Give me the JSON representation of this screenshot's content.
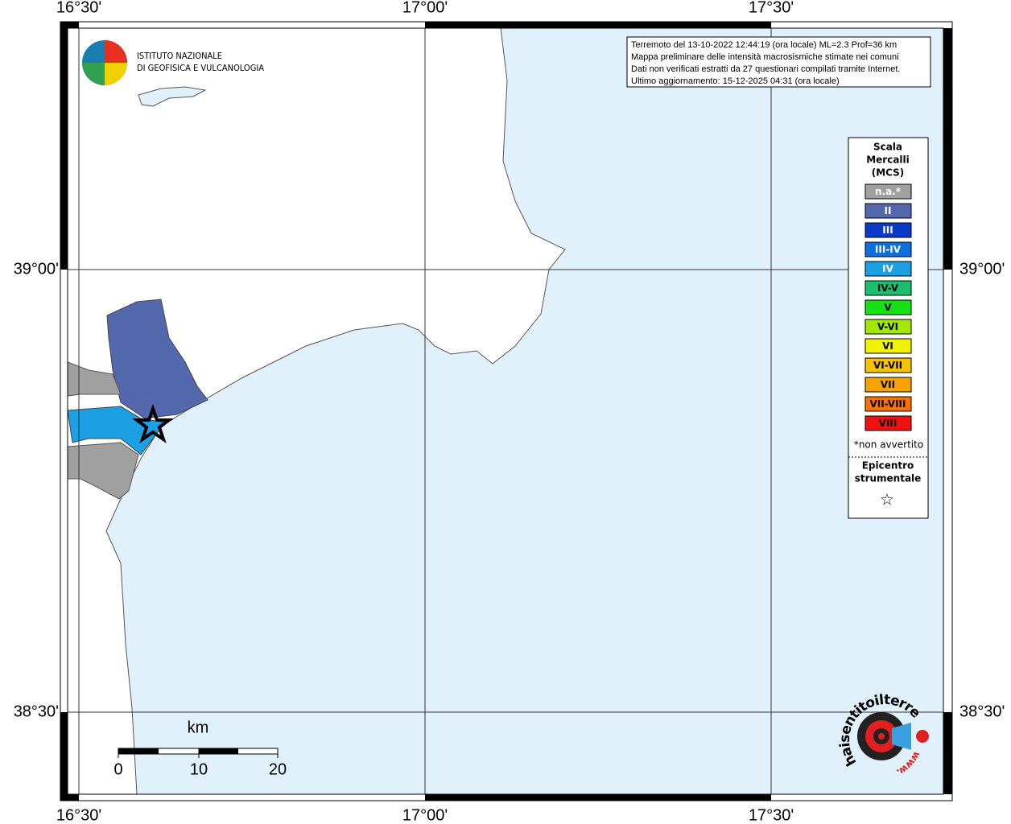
{
  "map": {
    "lon_labels": [
      "16°30'",
      "17°00'",
      "17°30'"
    ],
    "lat_labels": [
      "39°00'",
      "38°30'"
    ],
    "info": [
      "Terremoto del 13-10-2022 12:44:19 (ora locale) ML=2.3 Prof=36 km",
      "Mappa preliminare delle intensità macrosismiche stimate nei comuni",
      "Dati non verificati estratti da 27 questionari compilati tramite Internet.",
      "Ultimo aggiornamento: 15-12-2025 04:31 (ora locale)"
    ],
    "logo": [
      "ISTITUTO NAZIONALE",
      "DI GEOFISICA E VULCANOLOGIA"
    ],
    "scale": {
      "unit": "km",
      "labels": [
        "0",
        "10",
        "20"
      ]
    },
    "site_logo": "haisentitoilterremoto.it",
    "site_logo_www": "www.",
    "legend": {
      "title": [
        "Scala",
        "Mercalli",
        "(MCS)"
      ],
      "items": [
        {
          "label": "n.a.*",
          "color": "#a0a0a0",
          "text_color": "#ffffff"
        },
        {
          "label": "II",
          "color": "#5468ae",
          "text_color": "#ffffff"
        },
        {
          "label": "III",
          "color": "#0b3bc6",
          "text_color": "#ffffff"
        },
        {
          "label": "III-IV",
          "color": "#0b6fdf",
          "text_color": "#ffffff"
        },
        {
          "label": "IV",
          "color": "#1ba0e6",
          "text_color": "#ffffff"
        },
        {
          "label": "IV-V",
          "color": "#1abf6e",
          "text_color": "#000000"
        },
        {
          "label": "V",
          "color": "#16e016",
          "text_color": "#000000"
        },
        {
          "label": "V-VI",
          "color": "#a2e800",
          "text_color": "#000000"
        },
        {
          "label": "VI",
          "color": "#f2f200",
          "text_color": "#000000"
        },
        {
          "label": "VI-VII",
          "color": "#f7c200",
          "text_color": "#000000"
        },
        {
          "label": "VII",
          "color": "#f8a200",
          "text_color": "#000000"
        },
        {
          "label": "VII-VIII",
          "color": "#f87200",
          "text_color": "#000000"
        },
        {
          "label": "VIII",
          "color": "#f01212",
          "text_color": "#000000"
        }
      ],
      "note": "*non avvertito",
      "epicenter": [
        "Epicentro",
        "strumentale"
      ],
      "epicenter_symbol": "☆"
    }
  }
}
